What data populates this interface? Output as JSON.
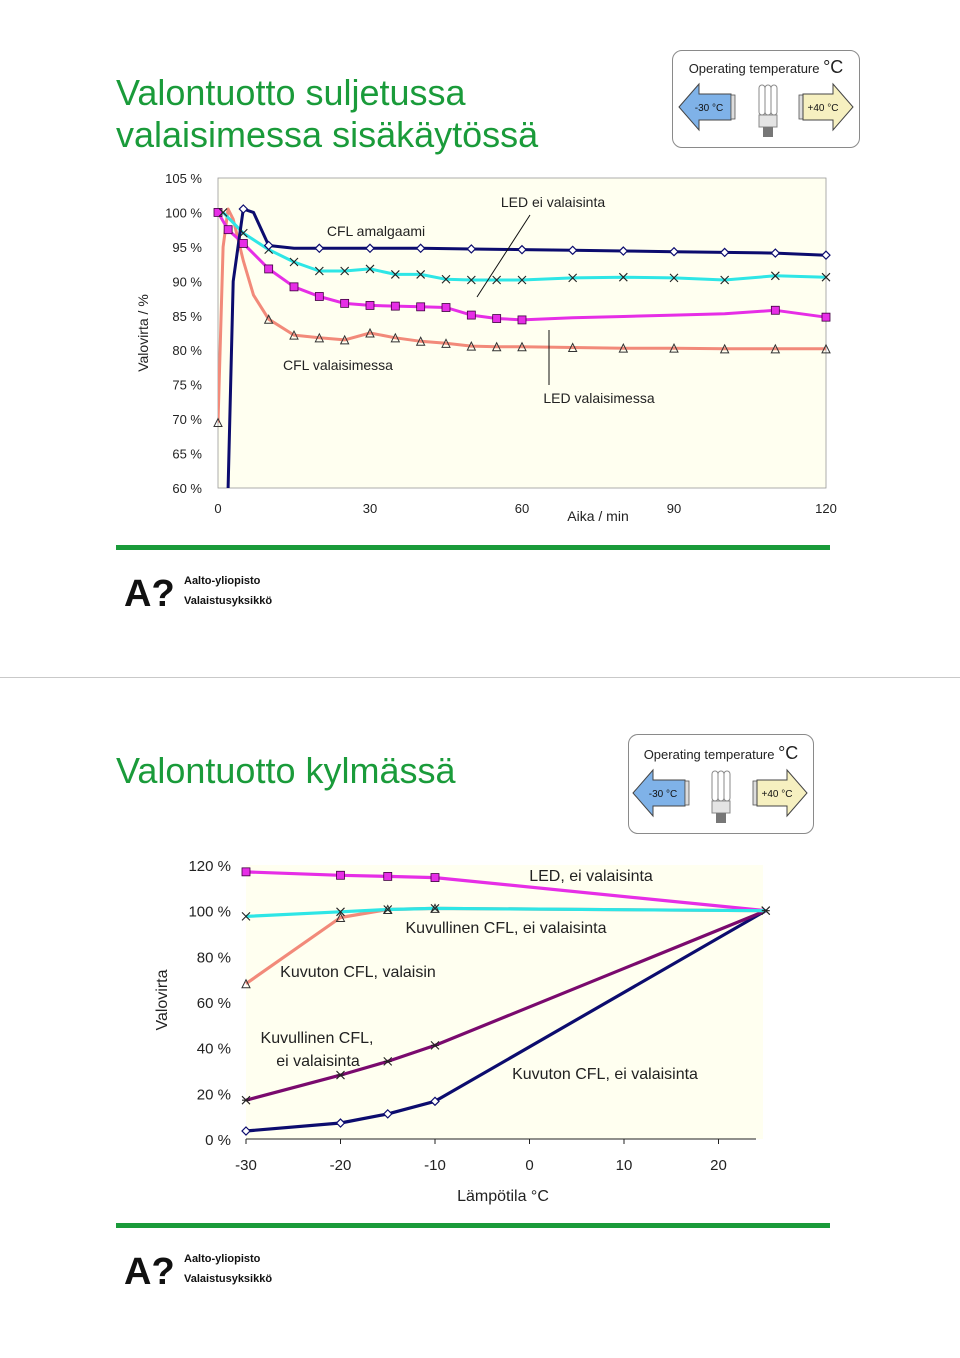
{
  "slide1": {
    "title_lines": [
      "Valontuotto suljetussa",
      "valaisimessa sisäkäytössä"
    ],
    "op_panel": {
      "title": "Operating temperature",
      "deg_symbol": "°C",
      "cold_label": "-30 °C",
      "hot_label": "+40 °C"
    }
  },
  "slide2": {
    "title_lines": [
      "Valontuotto kylmässä"
    ],
    "op_panel": {
      "title": "Operating temperature",
      "deg_symbol": "°C",
      "cold_label": "-30 °C",
      "hot_label": "+40 °C"
    }
  },
  "logo": {
    "mark": "A?",
    "line1": "Aalto-yliopisto",
    "line2": "Valaistusyksikkö"
  },
  "colors": {
    "title_green": "#1a9b3a",
    "navy": "#0c0c6e",
    "cyan": "#2ee6e6",
    "magenta": "#e62ee6",
    "salmon": "#f28a7a",
    "purple": "#7a0a6e",
    "plot_bg": "#fffff0",
    "cold_arrow": "#7fb2e8",
    "hot_arrow": "#f6f0c0"
  },
  "chart_data": [
    {
      "type": "line",
      "xlabel": "Aika / min",
      "ylabel": "Valovirta / %",
      "xlim": [
        0,
        120
      ],
      "ylim": [
        60,
        105
      ],
      "xticks": [
        0,
        30,
        60,
        90,
        120
      ],
      "xtick_labels": [
        "0",
        "30",
        "60",
        "90",
        "120"
      ],
      "yticks": [
        60,
        65,
        70,
        75,
        80,
        85,
        90,
        95,
        100,
        105
      ],
      "ytick_labels": [
        "60 %",
        "65 %",
        "70 %",
        "75 %",
        "80 %",
        "85 %",
        "90 %",
        "95 %",
        "100 %",
        "105 %"
      ],
      "grid": false,
      "series": [
        {
          "color": "#0c0c6e",
          "marker": "diamond",
          "x": [
            2,
            3,
            5,
            7,
            10,
            15,
            20,
            25,
            30,
            40,
            50,
            60,
            70,
            80,
            90,
            100,
            110,
            120
          ],
          "y": [
            60,
            90,
            100.5,
            100,
            95.2,
            94.8,
            94.8,
            94.8,
            94.8,
            94.8,
            94.7,
            94.6,
            94.5,
            94.4,
            94.3,
            94.2,
            94.1,
            93.8
          ],
          "marker_x": [
            5,
            10,
            20,
            30,
            40,
            50,
            60,
            70,
            80,
            90,
            100,
            110,
            120
          ]
        },
        {
          "color": "#2ee6e6",
          "marker": "x",
          "x": [
            1,
            5,
            10,
            15,
            20,
            25,
            30,
            35,
            40,
            45,
            50,
            55,
            60,
            70,
            80,
            90,
            100,
            110,
            120
          ],
          "y": [
            100,
            97,
            94.6,
            92.8,
            91.5,
            91.5,
            91.8,
            91,
            91,
            90.3,
            90.2,
            90.2,
            90.2,
            90.5,
            90.6,
            90.5,
            90.2,
            90.8,
            90.6
          ],
          "marker_x": [
            1,
            5,
            10,
            15,
            20,
            25,
            30,
            35,
            40,
            45,
            50,
            55,
            60,
            70,
            80,
            90,
            100,
            110,
            120
          ]
        },
        {
          "color": "#e62ee6",
          "marker": "square",
          "x": [
            0,
            2,
            5,
            10,
            15,
            20,
            25,
            30,
            35,
            40,
            45,
            50,
            55,
            60,
            70,
            80,
            90,
            100,
            110,
            120
          ],
          "y": [
            100,
            97.5,
            95.5,
            91.8,
            89.2,
            87.8,
            86.8,
            86.5,
            86.4,
            86.3,
            86.2,
            85.1,
            84.6,
            84.4,
            84.7,
            84.9,
            85.1,
            85.3,
            85.8,
            84.8
          ],
          "marker_x": [
            0,
            2,
            5,
            10,
            15,
            20,
            25,
            30,
            35,
            40,
            45,
            50,
            55,
            60,
            110,
            120
          ]
        },
        {
          "color": "#f28a7a",
          "marker": "triangle",
          "x": [
            0,
            1,
            2,
            3,
            5,
            7,
            10,
            15,
            20,
            25,
            30,
            35,
            40,
            45,
            50,
            55,
            60,
            70,
            80,
            90,
            100,
            110,
            120
          ],
          "y": [
            69.5,
            95,
            100.5,
            99,
            93,
            88,
            84.5,
            82.2,
            81.8,
            81.5,
            82.5,
            81.8,
            81.3,
            81,
            80.6,
            80.5,
            80.5,
            80.4,
            80.3,
            80.3,
            80.2,
            80.2,
            80.2
          ],
          "marker_x": [
            0,
            10,
            15,
            20,
            25,
            30,
            35,
            40,
            45,
            50,
            55,
            60,
            70,
            80,
            90,
            100,
            110,
            120
          ]
        }
      ],
      "annotations": [
        "CFL amalgaami",
        "LED ei valaisinta",
        "CFL valaisimessa",
        "LED valaisimessa"
      ]
    },
    {
      "type": "line",
      "xlabel": "Lämpötila °C",
      "ylabel": "Valovirta",
      "xlim": [
        -30,
        25
      ],
      "ylim": [
        0,
        120
      ],
      "xticks": [
        -30,
        -20,
        -10,
        0,
        10,
        20
      ],
      "xtick_labels": [
        "-30",
        "-20",
        "-10",
        "0",
        "10",
        "20"
      ],
      "yticks": [
        0,
        20,
        40,
        60,
        80,
        100,
        120
      ],
      "ytick_labels": [
        "0 %",
        "20 %",
        "40 %",
        "60 %",
        "80 %",
        "100 %",
        "120 %"
      ],
      "grid": false,
      "series": [
        {
          "color": "#e62ee6",
          "marker": "square",
          "x": [
            -30,
            -20,
            -15,
            -10,
            25
          ],
          "y": [
            117,
            115.5,
            115,
            114.5,
            100
          ],
          "marker_x": [
            -30,
            -20,
            -15,
            -10
          ]
        },
        {
          "color": "#2ee6e6",
          "marker": "x",
          "x": [
            -30,
            -20,
            -15,
            -10,
            25
          ],
          "y": [
            97.5,
            99.5,
            100.5,
            101,
            100
          ],
          "marker_x": [
            -30,
            -20,
            -15,
            -10,
            25
          ]
        },
        {
          "color": "#f28a7a",
          "marker": "triangle",
          "x": [
            -30,
            -20,
            -15,
            -10,
            25
          ],
          "y": [
            68,
            97,
            100.5,
            101,
            100
          ],
          "marker_x": [
            -30,
            -20,
            -15,
            -10
          ]
        },
        {
          "color": "#7a0a6e",
          "marker": "asterisk",
          "x": [
            -30,
            -20,
            -15,
            -10,
            25
          ],
          "y": [
            17,
            28,
            34,
            41,
            100
          ],
          "marker_x": [
            -30,
            -20,
            -15,
            -10,
            25
          ]
        },
        {
          "color": "#0c0c6e",
          "marker": "diamond",
          "x": [
            -30,
            -20,
            -15,
            -10,
            25
          ],
          "y": [
            3.5,
            7,
            11,
            16.5,
            100
          ],
          "marker_x": [
            -30,
            -20,
            -15,
            -10
          ]
        }
      ],
      "annotations": [
        "LED, ei valaisinta",
        "Kuvullinen CFL, ei valaisinta",
        "Kuvuton CFL, valaisin",
        "Kuvullinen CFL,",
        "ei valaisinta",
        "Kuvuton CFL, ei valaisinta"
      ]
    }
  ]
}
